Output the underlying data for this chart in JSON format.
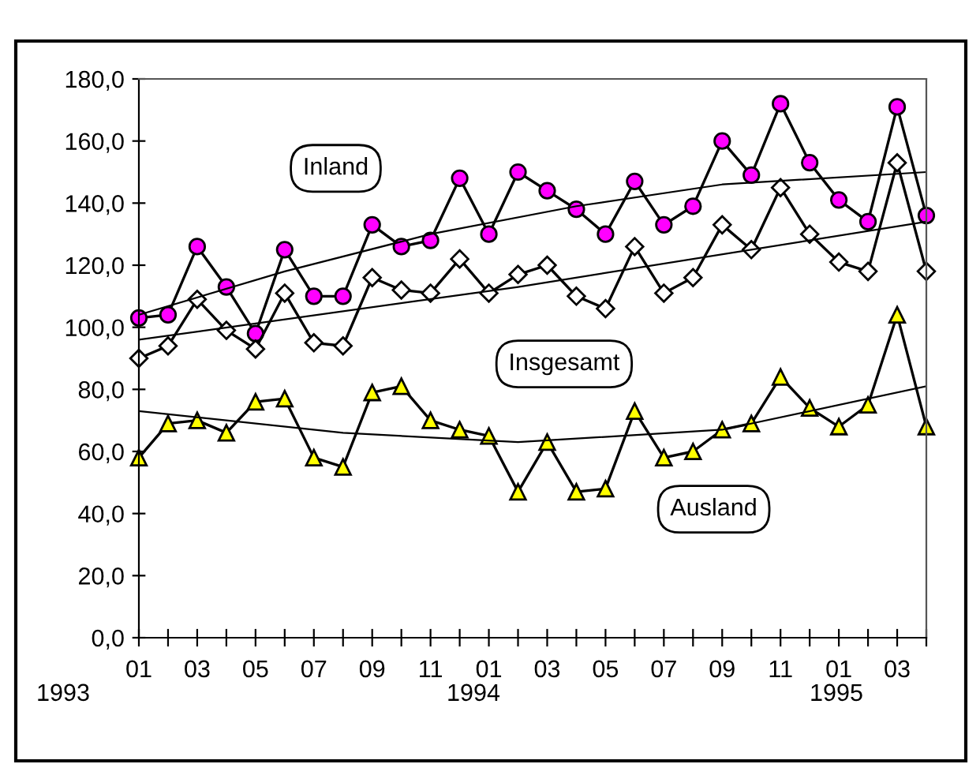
{
  "chart_data": {
    "type": "line",
    "x": [
      "1993-01",
      "1993-02",
      "1993-03",
      "1993-04",
      "1993-05",
      "1993-06",
      "1993-07",
      "1993-08",
      "1993-09",
      "1993-10",
      "1993-11",
      "1993-12",
      "1994-01",
      "1994-02",
      "1994-03",
      "1994-04",
      "1994-05",
      "1994-06",
      "1994-07",
      "1994-08",
      "1994-09",
      "1994-10",
      "1994-11",
      "1994-12",
      "1995-01",
      "1995-02",
      "1995-03",
      "1995-04"
    ],
    "series": [
      {
        "name": "Inland",
        "color": "#ff00ff",
        "marker": "circle",
        "values": [
          103,
          104,
          126,
          113,
          98,
          125,
          110,
          110,
          133,
          126,
          128,
          148,
          130,
          150,
          144,
          138,
          130,
          147,
          133,
          139,
          160,
          149,
          172,
          153,
          141,
          134,
          171,
          136
        ]
      },
      {
        "name": "Insgesamt",
        "color": "#ffffff",
        "marker": "diamond",
        "values": [
          90,
          94,
          109,
          99,
          93,
          111,
          95,
          94,
          116,
          112,
          111,
          122,
          111,
          117,
          120,
          110,
          106,
          126,
          111,
          116,
          133,
          125,
          145,
          130,
          121,
          118,
          153,
          118
        ]
      },
      {
        "name": "Ausland",
        "color": "#ffff00",
        "marker": "triangle",
        "values": [
          58,
          69,
          70,
          66,
          76,
          77,
          58,
          55,
          79,
          81,
          70,
          67,
          65,
          47,
          63,
          47,
          48,
          73,
          58,
          60,
          67,
          69,
          84,
          74,
          68,
          75,
          104,
          68
        ]
      },
      {
        "type": "line",
        "color": "#000000",
        "marker": "none",
        "x": [
          "1993-01",
          "1993-06",
          "1993-11",
          "1994-04",
          "1994-09",
          "1995-04"
        ],
        "values": [
          104,
          118,
          130,
          139,
          146,
          150
        ]
      },
      {
        "type": "line",
        "color": "#000000",
        "marker": "none",
        "x": [
          "1993-01",
          "1994-02",
          "1995-04"
        ],
        "values": [
          96,
          113,
          134
        ]
      },
      {
        "type": "line",
        "color": "#000000",
        "marker": "none",
        "x": [
          "1993-01",
          "1993-08",
          "1994-02",
          "1994-09",
          "1995-04"
        ],
        "values": [
          73,
          66,
          63,
          67,
          81
        ]
      }
    ],
    "xlim": [
      "1993-01",
      "1995-04"
    ],
    "xticks": [
      {
        "value": "1993-01",
        "label": "01"
      },
      {
        "value": "1993-02",
        "label": null
      },
      {
        "value": "1993-03",
        "label": "03"
      },
      {
        "value": "1993-04",
        "label": null
      },
      {
        "value": "1993-05",
        "label": "05"
      },
      {
        "value": "1993-06",
        "label": null
      },
      {
        "value": "1993-07",
        "label": "07"
      },
      {
        "value": "1993-08",
        "label": null
      },
      {
        "value": "1993-09",
        "label": "09"
      },
      {
        "value": "1993-10",
        "label": null
      },
      {
        "value": "1993-11",
        "label": "11"
      },
      {
        "value": "1993-12",
        "label": null
      },
      {
        "value": "1994-01",
        "label": "01"
      },
      {
        "value": "1994-02",
        "label": null
      },
      {
        "value": "1994-03",
        "label": "03"
      },
      {
        "value": "1994-04",
        "label": null
      },
      {
        "value": "1994-05",
        "label": "05"
      },
      {
        "value": "1994-06",
        "label": null
      },
      {
        "value": "1994-07",
        "label": "07"
      },
      {
        "value": "1994-08",
        "label": null
      },
      {
        "value": "1994-09",
        "label": "09"
      },
      {
        "value": "1994-10",
        "label": null
      },
      {
        "value": "1994-11",
        "label": "11"
      },
      {
        "value": "1994-12",
        "label": null
      },
      {
        "value": "1995-01",
        "label": "01"
      },
      {
        "value": "1995-02",
        "label": null
      },
      {
        "value": "1995-03",
        "label": "03"
      },
      {
        "value": "1995-04",
        "label": null
      }
    ],
    "ylim": [
      0,
      180
    ],
    "yticks": [
      {
        "value": 0,
        "label": "0,0"
      },
      {
        "value": 20,
        "label": "20,0"
      },
      {
        "value": 40,
        "label": "40,0"
      },
      {
        "value": 60,
        "label": "60,0"
      },
      {
        "value": 80,
        "label": "80,0"
      },
      {
        "value": 100,
        "label": "100,0"
      },
      {
        "value": 120,
        "label": "120,0"
      },
      {
        "value": 140,
        "label": "140,0"
      },
      {
        "value": 160,
        "label": "160,0"
      },
      {
        "value": 180,
        "label": "180,0"
      }
    ],
    "annotations": [
      "1993",
      "1994",
      "1995"
    ],
    "grid": false,
    "legend": false,
    "line_style": "solid"
  }
}
